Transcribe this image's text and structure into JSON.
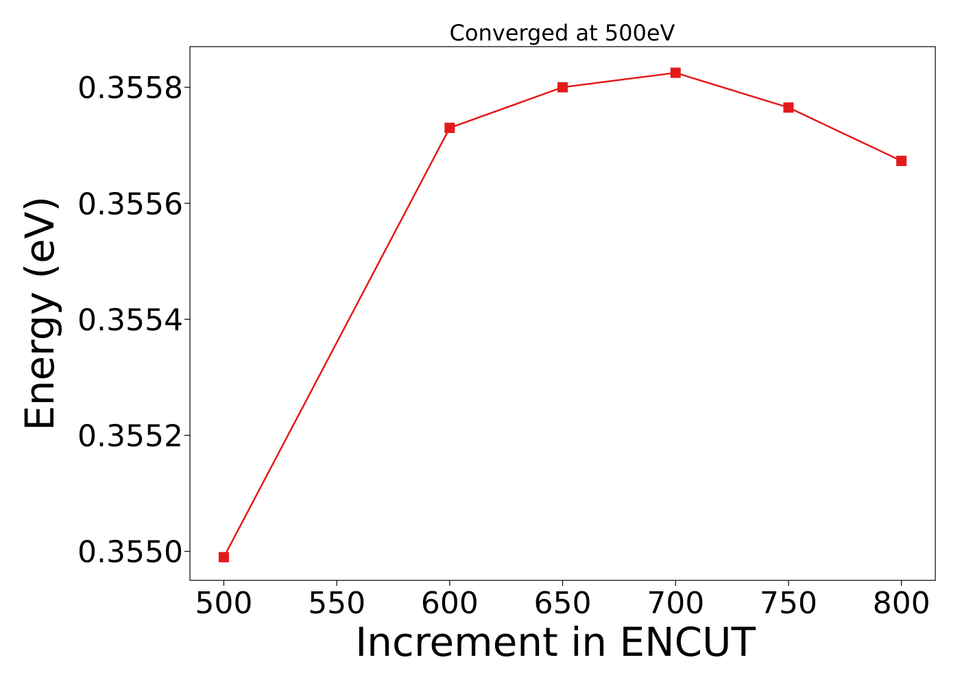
{
  "chart_data": {
    "type": "line",
    "title": "Converged at 500eV",
    "xlabel": "Increment in ENCUT",
    "ylabel": "Energy (eV)",
    "xlim": [
      485,
      815
    ],
    "ylim": [
      0.35495,
      0.35587
    ],
    "xticks": [
      500,
      550,
      600,
      650,
      700,
      750,
      800
    ],
    "yticks": [
      0.355,
      0.3552,
      0.3554,
      0.3556,
      0.3558
    ],
    "ytick_labels": [
      "0.3550",
      "0.3552",
      "0.3554",
      "0.3556",
      "0.3558"
    ],
    "grid": false,
    "series": [
      {
        "marker": "square",
        "color": "#e31a1c",
        "x": [
          500,
          600,
          650,
          700,
          750,
          800
        ],
        "y": [
          0.35499,
          0.35573,
          0.3558,
          0.355825,
          0.355765,
          0.355673
        ]
      }
    ]
  }
}
